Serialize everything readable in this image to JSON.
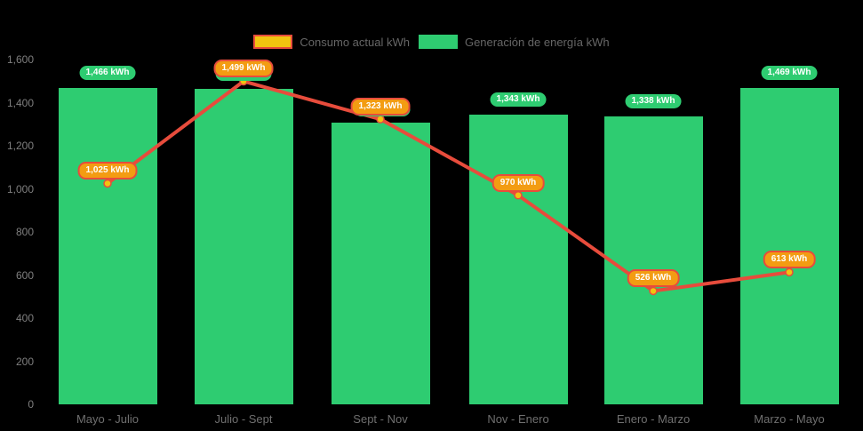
{
  "colors": {
    "background": "#000000",
    "bar": "#2ecc71",
    "line": "#e74c3c",
    "point_fill": "#f1c40f",
    "bar_label_bg": "#2ecc71",
    "line_label_bg": "#f39c12",
    "label_text": "#ffffff",
    "axis_tick_text": "#7f7f7f",
    "category_text": "#6f6f6f",
    "legend_text": "#666666"
  },
  "legend": {
    "items": [
      {
        "label": "Consumo actual kWh",
        "swatch_fill": "#f1c40f",
        "swatch_border": "#e74c3c"
      },
      {
        "label": "Generación de energía kWh",
        "swatch_fill": "#2ecc71",
        "swatch_border": "#2ecc71"
      }
    ]
  },
  "chart_data": {
    "type": "combo",
    "title": "",
    "xlabel": "",
    "ylabel": "",
    "categories": [
      "Mayo - Julio",
      "Julio - Sept",
      "Sept - Nov",
      "Nov - Enero",
      "Enero - Marzo",
      "Marzo - Mayo"
    ],
    "series": [
      {
        "name": "Generación de energía kWh",
        "type": "bar",
        "color": "#2ecc71",
        "values": [
          1466,
          1463,
          1308,
          1343,
          1338,
          1469
        ],
        "point_labels": [
          "1,466 kWh",
          "1,463 kWh",
          "1,308 kWh",
          "1,343 kWh",
          "1,338 kWh",
          "1,469 kWh"
        ]
      },
      {
        "name": "Consumo actual kWh",
        "type": "line",
        "color": "#e74c3c",
        "point_fill": "#f1c40f",
        "values": [
          1025,
          1499,
          1323,
          970,
          526,
          613
        ],
        "point_labels": [
          "1,025 kWh",
          "1,499 kWh",
          "1,323 kWh",
          "970 kWh",
          "526 kWh",
          "613 kWh"
        ]
      }
    ],
    "ylim": [
      0,
      1600
    ],
    "ytick_values": [
      0,
      200,
      400,
      600,
      800,
      1000,
      1200,
      1400,
      1600
    ],
    "ytick_labels": [
      "0",
      "200",
      "400",
      "600",
      "800",
      "1,000",
      "1,200",
      "1,400",
      "1,600"
    ],
    "grid": false,
    "legend_position": "top"
  }
}
